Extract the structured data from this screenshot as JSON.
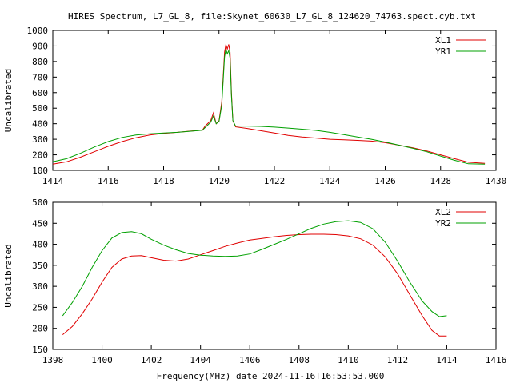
{
  "title": "HIRES Spectrum, L7_GL_8, file:Skynet_60630_L7_GL_8_124620_74763.spect.cyb.txt",
  "footer_label": "Frequency(MHz) date 2024-11-16T16:53:53.000",
  "chart_data": [
    {
      "type": "line",
      "ylabel": "Uncalibrated",
      "xlim": [
        1414,
        1430
      ],
      "ylim": [
        100,
        1000
      ],
      "xticks": [
        1414,
        1416,
        1418,
        1420,
        1422,
        1424,
        1426,
        1428,
        1430
      ],
      "yticks": [
        100,
        200,
        300,
        400,
        500,
        600,
        700,
        800,
        900,
        1000
      ],
      "legend_position": "top-right",
      "series": [
        {
          "name": "XL1",
          "color": "#e00000",
          "points": [
            [
              1414.0,
              140
            ],
            [
              1414.5,
              155
            ],
            [
              1415.0,
              185
            ],
            [
              1415.5,
              220
            ],
            [
              1416.0,
              255
            ],
            [
              1416.5,
              285
            ],
            [
              1417.0,
              310
            ],
            [
              1417.5,
              328
            ],
            [
              1418.0,
              338
            ],
            [
              1418.5,
              345
            ],
            [
              1419.0,
              353
            ],
            [
              1419.4,
              358
            ],
            [
              1419.5,
              385
            ],
            [
              1419.7,
              420
            ],
            [
              1419.8,
              470
            ],
            [
              1419.9,
              400
            ],
            [
              1420.0,
              420
            ],
            [
              1420.1,
              540
            ],
            [
              1420.2,
              860
            ],
            [
              1420.25,
              910
            ],
            [
              1420.3,
              880
            ],
            [
              1420.35,
              910
            ],
            [
              1420.4,
              860
            ],
            [
              1420.45,
              600
            ],
            [
              1420.5,
              420
            ],
            [
              1420.6,
              380
            ],
            [
              1421.0,
              370
            ],
            [
              1421.5,
              355
            ],
            [
              1422.0,
              340
            ],
            [
              1422.5,
              325
            ],
            [
              1423.0,
              315
            ],
            [
              1423.5,
              308
            ],
            [
              1424.0,
              300
            ],
            [
              1424.5,
              297
            ],
            [
              1425.0,
              293
            ],
            [
              1425.5,
              288
            ],
            [
              1426.0,
              278
            ],
            [
              1426.5,
              262
            ],
            [
              1427.0,
              245
            ],
            [
              1427.5,
              225
            ],
            [
              1428.0,
              200
            ],
            [
              1428.5,
              175
            ],
            [
              1429.0,
              152
            ],
            [
              1429.6,
              145
            ]
          ]
        },
        {
          "name": "YR1",
          "color": "#00a000",
          "points": [
            [
              1414.0,
              155
            ],
            [
              1414.5,
              175
            ],
            [
              1415.0,
              210
            ],
            [
              1415.5,
              250
            ],
            [
              1416.0,
              285
            ],
            [
              1416.5,
              312
            ],
            [
              1417.0,
              328
            ],
            [
              1417.5,
              335
            ],
            [
              1418.0,
              340
            ],
            [
              1418.5,
              345
            ],
            [
              1419.0,
              352
            ],
            [
              1419.4,
              358
            ],
            [
              1419.5,
              375
            ],
            [
              1419.7,
              410
            ],
            [
              1419.8,
              450
            ],
            [
              1419.9,
              400
            ],
            [
              1420.0,
              415
            ],
            [
              1420.1,
              520
            ],
            [
              1420.2,
              830
            ],
            [
              1420.25,
              880
            ],
            [
              1420.3,
              850
            ],
            [
              1420.35,
              870
            ],
            [
              1420.4,
              820
            ],
            [
              1420.45,
              580
            ],
            [
              1420.5,
              420
            ],
            [
              1420.6,
              385
            ],
            [
              1421.0,
              385
            ],
            [
              1421.5,
              383
            ],
            [
              1422.0,
              378
            ],
            [
              1422.5,
              372
            ],
            [
              1423.0,
              365
            ],
            [
              1423.5,
              357
            ],
            [
              1424.0,
              345
            ],
            [
              1424.5,
              330
            ],
            [
              1425.0,
              315
            ],
            [
              1425.5,
              300
            ],
            [
              1426.0,
              282
            ],
            [
              1426.5,
              262
            ],
            [
              1427.0,
              242
            ],
            [
              1427.5,
              220
            ],
            [
              1428.0,
              192
            ],
            [
              1428.5,
              165
            ],
            [
              1429.0,
              142
            ],
            [
              1429.6,
              140
            ]
          ]
        }
      ]
    },
    {
      "type": "line",
      "ylabel": "Uncalibrated",
      "xlim": [
        1398,
        1416
      ],
      "ylim": [
        150,
        500
      ],
      "xticks": [
        1398,
        1400,
        1402,
        1404,
        1406,
        1408,
        1410,
        1412,
        1414,
        1416
      ],
      "yticks": [
        150,
        200,
        250,
        300,
        350,
        400,
        450,
        500
      ],
      "legend_position": "top-right",
      "series": [
        {
          "name": "XL2",
          "color": "#e00000",
          "points": [
            [
              1398.4,
              185
            ],
            [
              1398.8,
              205
            ],
            [
              1399.2,
              235
            ],
            [
              1399.6,
              270
            ],
            [
              1400.0,
              310
            ],
            [
              1400.4,
              345
            ],
            [
              1400.8,
              365
            ],
            [
              1401.2,
              372
            ],
            [
              1401.6,
              373
            ],
            [
              1402.0,
              368
            ],
            [
              1402.5,
              362
            ],
            [
              1403.0,
              360
            ],
            [
              1403.5,
              365
            ],
            [
              1404.0,
              375
            ],
            [
              1404.5,
              385
            ],
            [
              1405.0,
              395
            ],
            [
              1405.5,
              403
            ],
            [
              1406.0,
              410
            ],
            [
              1406.5,
              414
            ],
            [
              1407.0,
              418
            ],
            [
              1407.5,
              421
            ],
            [
              1408.0,
              423
            ],
            [
              1408.5,
              424
            ],
            [
              1409.0,
              424
            ],
            [
              1409.5,
              423
            ],
            [
              1410.0,
              420
            ],
            [
              1410.5,
              413
            ],
            [
              1411.0,
              398
            ],
            [
              1411.5,
              370
            ],
            [
              1412.0,
              330
            ],
            [
              1412.5,
              280
            ],
            [
              1413.0,
              230
            ],
            [
              1413.4,
              195
            ],
            [
              1413.7,
              182
            ],
            [
              1414.0,
              182
            ]
          ]
        },
        {
          "name": "YR2",
          "color": "#00a000",
          "points": [
            [
              1398.4,
              230
            ],
            [
              1398.8,
              262
            ],
            [
              1399.2,
              300
            ],
            [
              1399.6,
              345
            ],
            [
              1400.0,
              385
            ],
            [
              1400.4,
              415
            ],
            [
              1400.8,
              428
            ],
            [
              1401.2,
              430
            ],
            [
              1401.6,
              425
            ],
            [
              1402.0,
              412
            ],
            [
              1402.5,
              398
            ],
            [
              1403.0,
              387
            ],
            [
              1403.5,
              378
            ],
            [
              1404.0,
              374
            ],
            [
              1404.5,
              372
            ],
            [
              1405.0,
              371
            ],
            [
              1405.5,
              372
            ],
            [
              1406.0,
              377
            ],
            [
              1406.5,
              388
            ],
            [
              1407.0,
              400
            ],
            [
              1407.5,
              412
            ],
            [
              1408.0,
              425
            ],
            [
              1408.5,
              438
            ],
            [
              1409.0,
              448
            ],
            [
              1409.5,
              454
            ],
            [
              1410.0,
              456
            ],
            [
              1410.5,
              452
            ],
            [
              1411.0,
              437
            ],
            [
              1411.5,
              405
            ],
            [
              1412.0,
              360
            ],
            [
              1412.5,
              310
            ],
            [
              1413.0,
              265
            ],
            [
              1413.4,
              240
            ],
            [
              1413.7,
              228
            ],
            [
              1414.0,
              230
            ]
          ]
        }
      ]
    }
  ]
}
